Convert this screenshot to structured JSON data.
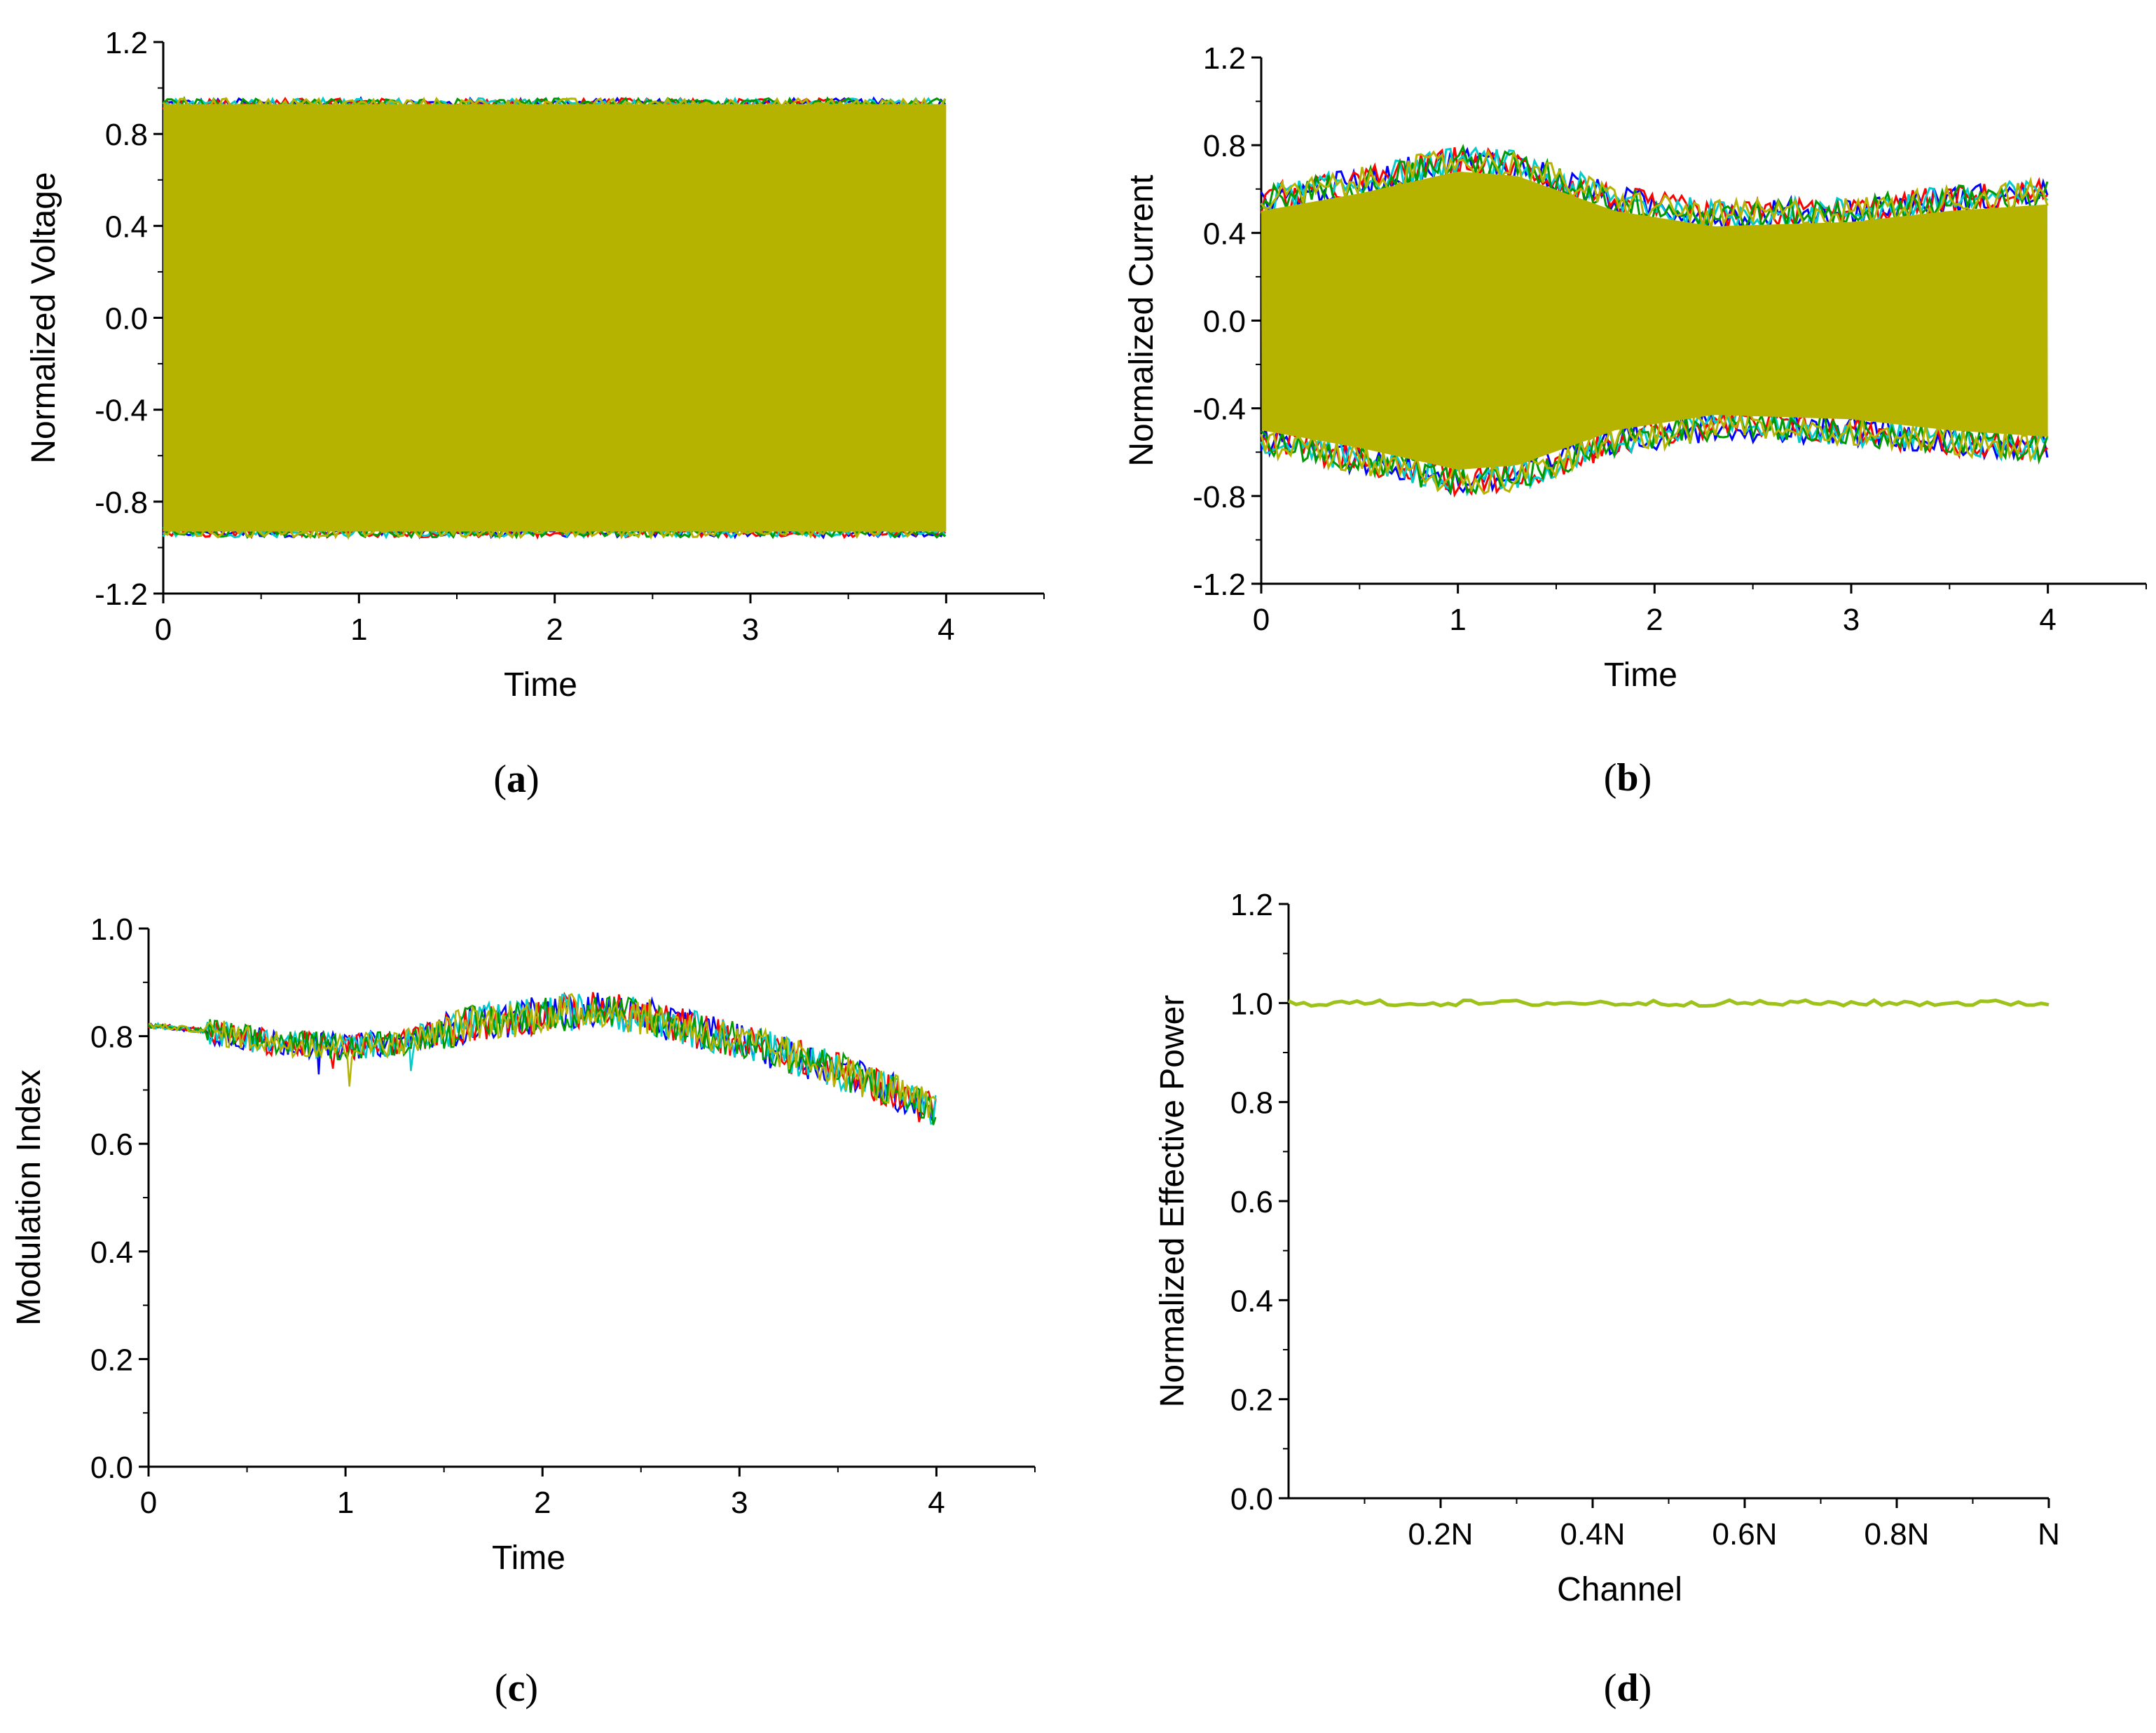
{
  "charts": [
    {
      "id": "a",
      "type": "line",
      "panel_label": "a",
      "xlabel": "Time",
      "ylabel": "Normalized Voltage",
      "xlim": [
        0,
        4.5
      ],
      "ylim": [
        -1.2,
        1.2
      ],
      "xticks": [
        "0",
        "1",
        "2",
        "3",
        "4"
      ],
      "yticks": [
        "1.2",
        "0.8",
        "0.4",
        "0.0",
        "-0.4",
        "-0.8",
        "-1.2"
      ],
      "ytick_values": [
        1.2,
        0.8,
        0.4,
        0.0,
        -0.4,
        -0.8,
        -1.2
      ],
      "xtick_values": [
        0,
        1,
        2,
        3,
        4
      ],
      "description_envelope": {
        "x": [
          0,
          4
        ],
        "upper": 0.93,
        "lower": -0.93
      },
      "fill_color": "#b5b300",
      "series_colors": [
        "#0000ff",
        "#ff0000",
        "#00cccc",
        "#009900",
        "#b5b300"
      ]
    },
    {
      "id": "b",
      "type": "line",
      "panel_label": "b",
      "xlabel": "Time",
      "ylabel": "Normalized Current",
      "xlim": [
        0,
        4.5
      ],
      "ylim": [
        -1.2,
        1.2
      ],
      "xticks": [
        "0",
        "1",
        "2",
        "3",
        "4"
      ],
      "yticks": [
        "1.2",
        "0.8",
        "0.4",
        "0.0",
        "-0.4",
        "-0.8",
        "-1.2"
      ],
      "ytick_values": [
        1.2,
        0.8,
        0.4,
        0.0,
        -0.4,
        -0.8,
        -1.2
      ],
      "xtick_values": [
        0,
        1,
        2,
        3,
        4
      ],
      "envelope_x": [
        0,
        0.5,
        1.0,
        1.3,
        1.8,
        2.3,
        3.0,
        3.5,
        4.0
      ],
      "envelope_upper": [
        0.52,
        0.6,
        0.7,
        0.68,
        0.52,
        0.45,
        0.47,
        0.52,
        0.55
      ],
      "fill_color": "#b5b300",
      "series_colors": [
        "#0000ff",
        "#ff0000",
        "#00cccc",
        "#009900",
        "#b5b300"
      ]
    },
    {
      "id": "c",
      "type": "line",
      "panel_label": "c",
      "xlabel": "Time",
      "ylabel": "Modulation Index",
      "xlim": [
        0,
        4.5
      ],
      "ylim": [
        0.0,
        1.0
      ],
      "xticks": [
        "0",
        "1",
        "2",
        "3",
        "4"
      ],
      "yticks": [
        "1.0",
        "0.8",
        "0.6",
        "0.4",
        "0.2",
        "0.0"
      ],
      "ytick_values": [
        1.0,
        0.8,
        0.6,
        0.4,
        0.2,
        0.0
      ],
      "xtick_values": [
        0,
        1,
        2,
        3,
        4
      ],
      "trend_x": [
        0,
        0.3,
        0.6,
        1.0,
        1.3,
        1.6,
        2.0,
        2.3,
        2.6,
        3.0,
        3.4,
        3.7,
        4.0
      ],
      "trend_y": [
        0.82,
        0.81,
        0.79,
        0.78,
        0.79,
        0.82,
        0.84,
        0.85,
        0.83,
        0.79,
        0.75,
        0.71,
        0.66
      ],
      "series": [
        {
          "name": "blue",
          "color": "#0000ff"
        },
        {
          "name": "red",
          "color": "#ff0000"
        },
        {
          "name": "cyan",
          "color": "#00cccc"
        },
        {
          "name": "green",
          "color": "#009900"
        },
        {
          "name": "olive",
          "color": "#b5b300"
        }
      ]
    },
    {
      "id": "d",
      "type": "line",
      "panel_label": "d",
      "xlabel": "Channel",
      "ylabel": "Normalized Effective Power",
      "xlim": [
        0,
        1.0
      ],
      "ylim": [
        0.0,
        1.2
      ],
      "xticks": [
        "0.2N",
        "0.4N",
        "0.6N",
        "0.8N",
        "N"
      ],
      "xtick_values": [
        0.2,
        0.4,
        0.6,
        0.8,
        1.0
      ],
      "yticks": [
        "1.2",
        "1.0",
        "0.8",
        "0.6",
        "0.4",
        "0.2",
        "0.0"
      ],
      "ytick_values": [
        1.2,
        1.0,
        0.8,
        0.6,
        0.4,
        0.2,
        0.0
      ],
      "line_value": 1.0,
      "line_color": "#9dc21a"
    }
  ]
}
